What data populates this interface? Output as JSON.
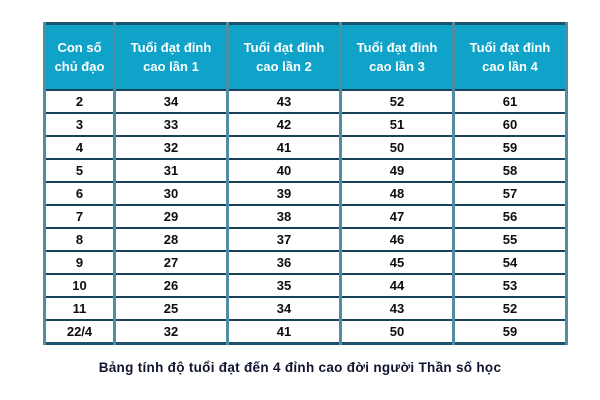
{
  "colors": {
    "header_bg": "#0fa3c9",
    "header_text": "#ffffff",
    "border_outer": "#1c526d",
    "border_vertical": "#4f8da3",
    "border_horizontal": "#16425c",
    "cell_text": "#0d0d0d",
    "caption_text": "#0e1430"
  },
  "table": {
    "headers": [
      "Con số\nchủ đạo",
      "Tuổi đạt đỉnh\ncao lần 1",
      "Tuổi đạt đỉnh\ncao lần 2",
      "Tuổi đạt đỉnh\ncao lần 3",
      "Tuổi đạt đỉnh\ncao lần 4"
    ],
    "rows": [
      [
        "2",
        "34",
        "43",
        "52",
        "61"
      ],
      [
        "3",
        "33",
        "42",
        "51",
        "60"
      ],
      [
        "4",
        "32",
        "41",
        "50",
        "59"
      ],
      [
        "5",
        "31",
        "40",
        "49",
        "58"
      ],
      [
        "6",
        "30",
        "39",
        "48",
        "57"
      ],
      [
        "7",
        "29",
        "38",
        "47",
        "56"
      ],
      [
        "8",
        "28",
        "37",
        "46",
        "55"
      ],
      [
        "9",
        "27",
        "36",
        "45",
        "54"
      ],
      [
        "10",
        "26",
        "35",
        "44",
        "53"
      ],
      [
        "11",
        "25",
        "34",
        "43",
        "52"
      ],
      [
        "22/4",
        "32",
        "41",
        "50",
        "59"
      ]
    ]
  },
  "caption": "Bảng tính độ tuổi đạt đến 4 đỉnh cao đời người Thần số học"
}
